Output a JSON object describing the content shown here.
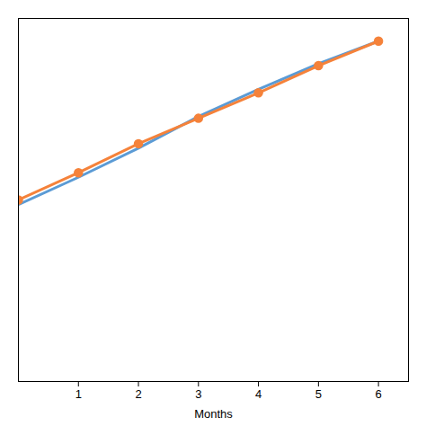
{
  "chart_data": {
    "type": "line",
    "x": [
      0,
      1,
      2,
      3,
      4,
      5,
      6
    ],
    "series": [
      {
        "color": "#5B9BD5",
        "values": [
          -5,
          25,
          57,
          92,
          122,
          150,
          175
        ]
      },
      {
        "color": "#F5823A",
        "marker": "circle",
        "values": [
          0,
          30,
          62,
          90,
          118,
          148,
          175
        ]
      }
    ],
    "xlabel": "Months",
    "xlim": [
      0.0,
      6.5
    ],
    "xticks": [
      1,
      2,
      3,
      4,
      5,
      6
    ],
    "ylim": [
      -200,
      200
    ],
    "tick_labels": "x"
  }
}
